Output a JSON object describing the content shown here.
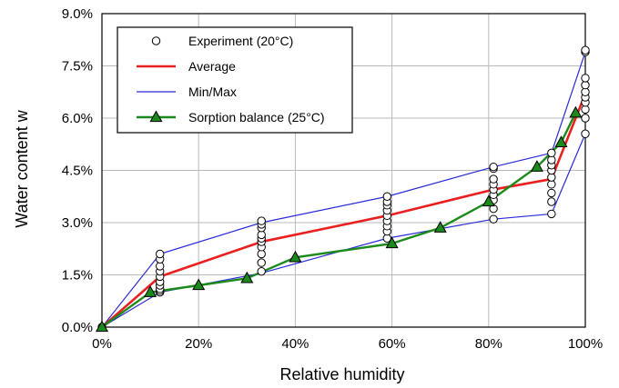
{
  "chart_data": {
    "type": "line",
    "xlabel": "Relative humidity",
    "ylabel": "Water content w",
    "xlim": [
      0,
      100
    ],
    "ylim": [
      0,
      9.0
    ],
    "x_ticks": [
      {
        "value": 0,
        "label": "0%"
      },
      {
        "value": 20,
        "label": "20%"
      },
      {
        "value": 40,
        "label": "40%"
      },
      {
        "value": 60,
        "label": "60%"
      },
      {
        "value": 80,
        "label": "80%"
      },
      {
        "value": 100,
        "label": "100%"
      }
    ],
    "y_ticks": [
      {
        "value": 0,
        "label": "0.0%"
      },
      {
        "value": 1.5,
        "label": "1.5%"
      },
      {
        "value": 3.0,
        "label": "3.0%"
      },
      {
        "value": 4.5,
        "label": "4.5%"
      },
      {
        "value": 6.0,
        "label": "6.0%"
      },
      {
        "value": 7.5,
        "label": "7.5%"
      },
      {
        "value": 9.0,
        "label": "9.0%"
      }
    ],
    "grid": true,
    "legend_position": "top-left",
    "series": [
      {
        "name": "Experiment (20°C)",
        "kind": "scatter",
        "marker": "open-circle",
        "color": "#000000",
        "points": [
          [
            0,
            0.0
          ],
          [
            12,
            1.0
          ],
          [
            12,
            1.05
          ],
          [
            12,
            1.1
          ],
          [
            12,
            1.2
          ],
          [
            12,
            1.3
          ],
          [
            12,
            1.45
          ],
          [
            12,
            1.6
          ],
          [
            12,
            1.75
          ],
          [
            12,
            1.95
          ],
          [
            12,
            2.1
          ],
          [
            33,
            1.6
          ],
          [
            33,
            1.85
          ],
          [
            33,
            2.1
          ],
          [
            33,
            2.3
          ],
          [
            33,
            2.45
          ],
          [
            33,
            2.55
          ],
          [
            33,
            2.65
          ],
          [
            33,
            2.85
          ],
          [
            33,
            2.95
          ],
          [
            33,
            3.05
          ],
          [
            59,
            2.55
          ],
          [
            59,
            2.75
          ],
          [
            59,
            2.9
          ],
          [
            59,
            3.05
          ],
          [
            59,
            3.2
          ],
          [
            59,
            3.35
          ],
          [
            59,
            3.5
          ],
          [
            59,
            3.6
          ],
          [
            59,
            3.75
          ],
          [
            81,
            3.1
          ],
          [
            81,
            3.4
          ],
          [
            81,
            3.65
          ],
          [
            81,
            3.8
          ],
          [
            81,
            3.95
          ],
          [
            81,
            4.1
          ],
          [
            81,
            4.25
          ],
          [
            81,
            4.55
          ],
          [
            81,
            4.6
          ],
          [
            93,
            3.25
          ],
          [
            93,
            3.6
          ],
          [
            93,
            3.85
          ],
          [
            93,
            4.1
          ],
          [
            93,
            4.3
          ],
          [
            93,
            4.5
          ],
          [
            93,
            4.65
          ],
          [
            93,
            4.8
          ],
          [
            93,
            5.0
          ],
          [
            100,
            5.55
          ],
          [
            100,
            6.0
          ],
          [
            100,
            6.25
          ],
          [
            100,
            6.45
          ],
          [
            100,
            6.6
          ],
          [
            100,
            6.75
          ],
          [
            100,
            6.95
          ],
          [
            100,
            7.15
          ],
          [
            100,
            7.9
          ],
          [
            100,
            7.95
          ]
        ]
      },
      {
        "name": "Average",
        "kind": "line",
        "color": "#e8201f",
        "points": [
          [
            0,
            0.0
          ],
          [
            12,
            1.45
          ],
          [
            33,
            2.45
          ],
          [
            59,
            3.2
          ],
          [
            81,
            3.95
          ],
          [
            93,
            4.25
          ],
          [
            100,
            6.7
          ]
        ]
      },
      {
        "name": "Min/Max",
        "kind": "line",
        "color": "#2a2ad6",
        "lines": [
          [
            [
              0,
              0.0
            ],
            [
              12,
              1.0
            ],
            [
              33,
              1.55
            ],
            [
              59,
              2.55
            ],
            [
              81,
              3.1
            ],
            [
              93,
              3.25
            ],
            [
              100,
              5.55
            ]
          ],
          [
            [
              0,
              0.0
            ],
            [
              12,
              2.1
            ],
            [
              33,
              3.0
            ],
            [
              59,
              3.75
            ],
            [
              81,
              4.6
            ],
            [
              93,
              5.0
            ],
            [
              100,
              7.9
            ]
          ]
        ]
      },
      {
        "name": "Sorption balance (25°C)",
        "kind": "line",
        "marker": "triangle",
        "color": "#1a8a1a",
        "points": [
          [
            0,
            0.0
          ],
          [
            10,
            1.0
          ],
          [
            20,
            1.2
          ],
          [
            30,
            1.4
          ],
          [
            40,
            2.0
          ],
          [
            60,
            2.4
          ],
          [
            70,
            2.85
          ],
          [
            80,
            3.6
          ],
          [
            90,
            4.6
          ],
          [
            95,
            5.3
          ],
          [
            98,
            6.15
          ]
        ]
      }
    ]
  }
}
